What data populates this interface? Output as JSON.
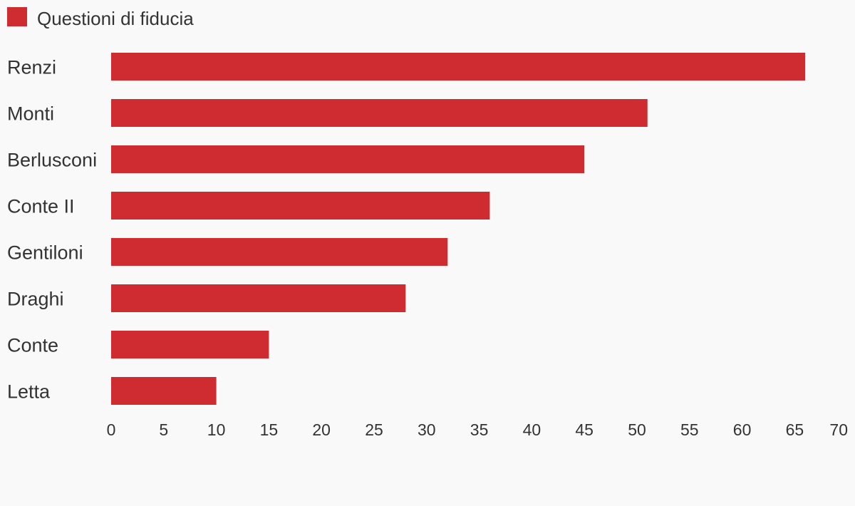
{
  "chart_data": {
    "type": "bar",
    "orientation": "horizontal",
    "legend_position": "top-left",
    "grid": false,
    "categories": [
      "Renzi",
      "Monti",
      "Berlusconi",
      "Conte II",
      "Gentiloni",
      "Draghi",
      "Conte",
      "Letta"
    ],
    "series": [
      {
        "name": "Questioni di fiducia",
        "color": "#cf2c32",
        "values": [
          66,
          51,
          45,
          36,
          32,
          28,
          15,
          10
        ]
      }
    ],
    "xlim": [
      0,
      70
    ],
    "x_ticks": [
      "0",
      "5",
      "10",
      "15",
      "20",
      "25",
      "30",
      "35",
      "40",
      "45",
      "50",
      "55",
      "60",
      "65",
      "70"
    ]
  }
}
